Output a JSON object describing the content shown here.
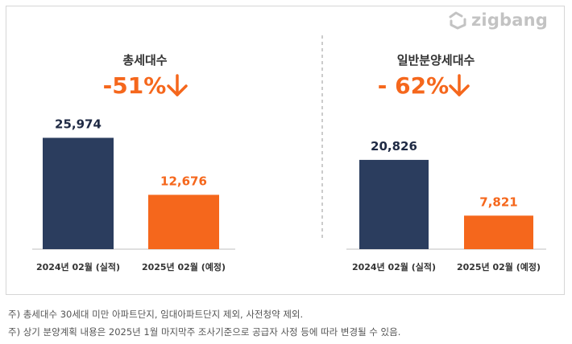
{
  "brand": {
    "logo_text": "zigbang",
    "logo_icon": "zigbang-house-icon",
    "color": "#c3c3c3"
  },
  "colors": {
    "actual": "#2b3d5e",
    "planned": "#f5671c",
    "change": "#f5671c"
  },
  "chart_data": [
    {
      "type": "bar",
      "title": "총세대수",
      "change": "-51%",
      "categories": [
        "2024년 02월 (실적)",
        "2025년 02월 (예정)"
      ],
      "values": [
        25974,
        12676
      ],
      "value_labels": [
        "25,974",
        "12,676"
      ],
      "ylim": [
        0,
        30000
      ]
    },
    {
      "type": "bar",
      "title": "일반분양세대수",
      "change": "- 62%",
      "categories": [
        "2024년 02월 (실적)",
        "2025년 02월 (예정)"
      ],
      "values": [
        20826,
        7821
      ],
      "value_labels": [
        "20,826",
        "7,821"
      ],
      "ylim": [
        0,
        30000
      ]
    }
  ],
  "notes": [
    "주) 총세대수 30세대 미만 아파트단지, 임대아파트단지 제외, 사전청약 제외.",
    "주) 상기 분양계획 내용은 2025년 1월  마지막주 조사기준으로 공급자 사정 등에 따라 변경될 수 있음."
  ]
}
